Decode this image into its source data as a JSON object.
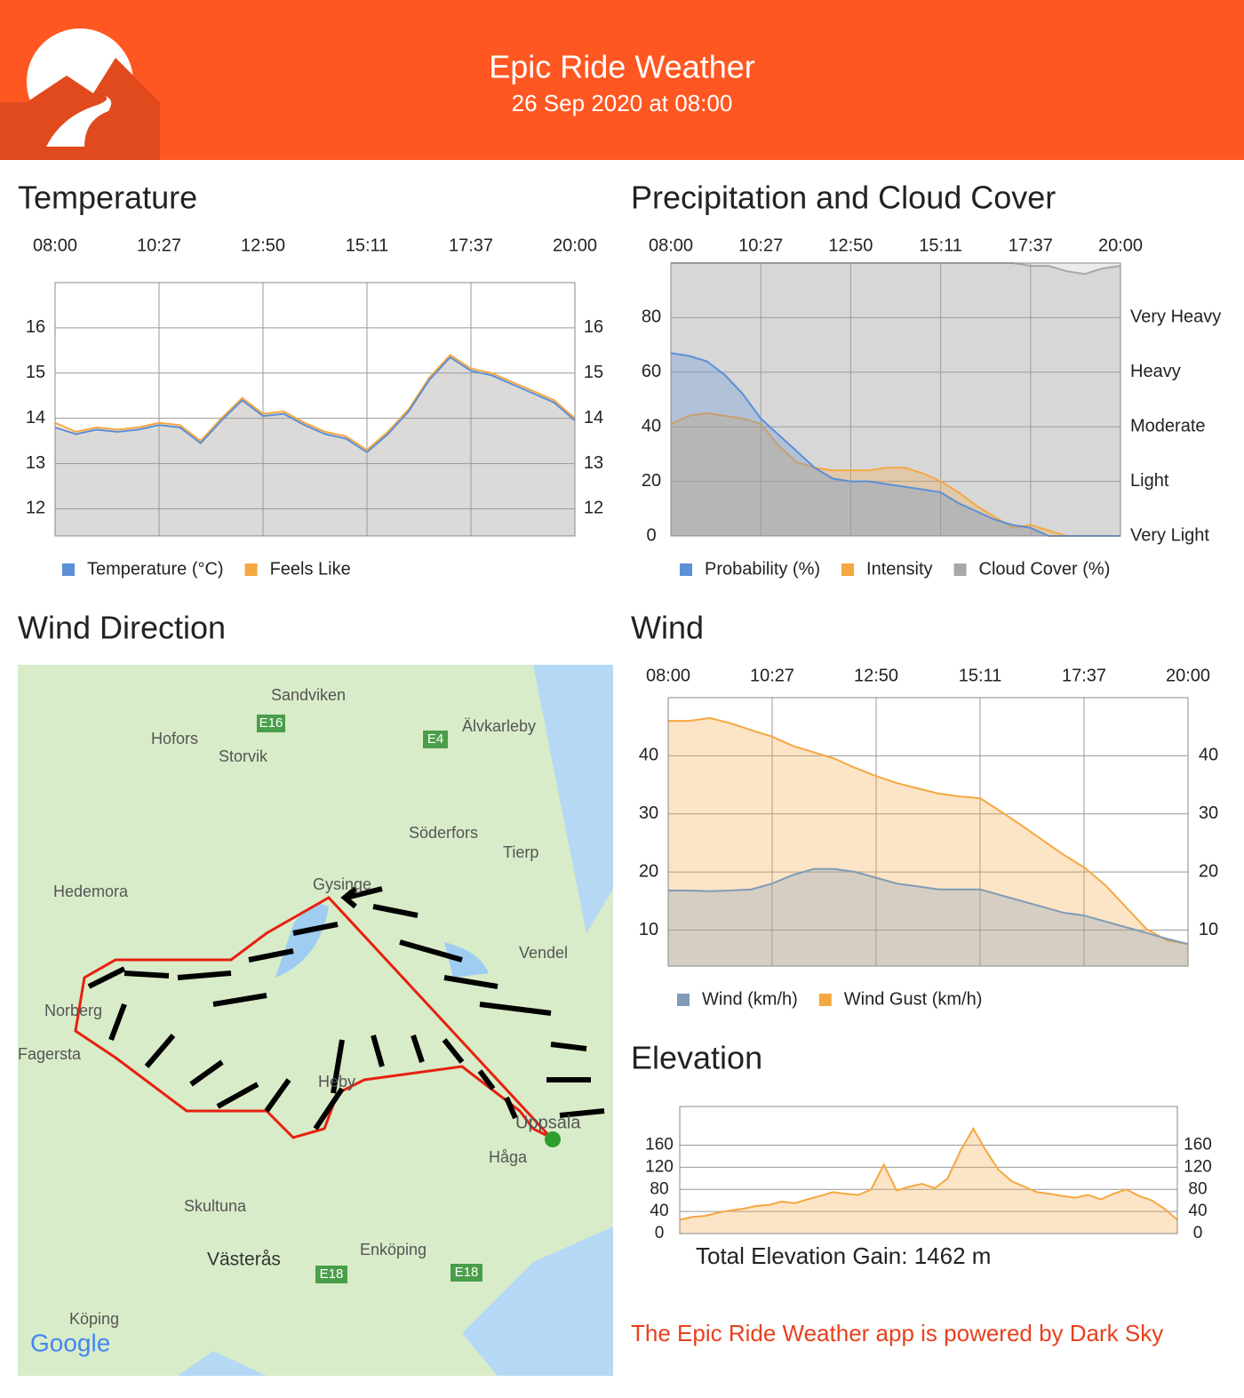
{
  "header": {
    "title": "Epic Ride Weather",
    "subtitle": "26 Sep 2020 at 08:00"
  },
  "chart_data": [
    {
      "type": "area",
      "title": "Temperature",
      "categories": [
        "08:00",
        null,
        null,
        null,
        null,
        "10:27",
        null,
        null,
        null,
        null,
        "12:50",
        null,
        null,
        null,
        null,
        "15:11",
        null,
        null,
        null,
        null,
        "17:37",
        null,
        null,
        null,
        null,
        "20:00"
      ],
      "series": [
        {
          "name": "Temperature (°C)",
          "color": "#5b8fd6",
          "values": [
            13.8,
            13.65,
            13.75,
            13.7,
            13.75,
            13.85,
            13.8,
            13.45,
            13.95,
            14.4,
            14.05,
            14.1,
            13.85,
            13.65,
            13.55,
            13.25,
            13.65,
            14.15,
            14.85,
            15.35,
            15.05,
            14.95,
            14.75,
            14.55,
            14.35,
            13.95
          ]
        },
        {
          "name": "Feels Like",
          "color": "#f5a742",
          "values": [
            13.9,
            13.7,
            13.8,
            13.75,
            13.8,
            13.9,
            13.85,
            13.5,
            14.0,
            14.45,
            14.1,
            14.15,
            13.9,
            13.7,
            13.6,
            13.3,
            13.7,
            14.2,
            14.9,
            15.4,
            15.1,
            15.0,
            14.8,
            14.6,
            14.4,
            14.0
          ]
        }
      ],
      "ylim": [
        11.4,
        17
      ],
      "yticks": [
        12,
        13,
        14,
        15,
        16
      ],
      "y2ticks": [
        12,
        13,
        14,
        15,
        16
      ],
      "grid": true
    },
    {
      "type": "area",
      "title": "Precipitation and Cloud Cover",
      "categories": [
        "08:00",
        null,
        null,
        null,
        null,
        "10:27",
        null,
        null,
        null,
        null,
        "12:50",
        null,
        null,
        null,
        null,
        "15:11",
        null,
        null,
        null,
        null,
        "17:37",
        null,
        null,
        null,
        null,
        "20:00"
      ],
      "series": [
        {
          "name": "Probability (%)",
          "color": "#5b8fd6",
          "values": [
            67,
            66,
            64,
            59,
            52,
            43,
            37,
            31,
            25,
            21,
            20,
            20,
            19,
            18,
            17,
            16,
            12,
            9,
            6,
            4,
            3,
            0,
            0,
            0,
            0,
            0
          ]
        },
        {
          "name": "Intensity",
          "color": "#f5a742",
          "values": [
            41,
            44,
            45,
            44,
            43,
            41,
            33,
            27,
            25,
            24,
            24,
            24,
            25,
            25,
            23,
            20,
            16,
            11,
            7,
            3,
            4,
            2,
            0,
            0,
            0,
            0
          ]
        },
        {
          "name": "Cloud Cover (%)",
          "color": "#a8a8a8",
          "values": [
            100,
            100,
            100,
            100,
            100,
            100,
            100,
            100,
            100,
            100,
            100,
            100,
            100,
            100,
            100,
            100,
            100,
            100,
            100,
            100,
            99,
            99,
            97,
            96,
            98,
            99
          ]
        }
      ],
      "ylim": [
        0,
        100
      ],
      "yticks": [
        0,
        20,
        40,
        60,
        80
      ],
      "y2lim": [
        0,
        100
      ],
      "y2ticks": [
        {
          "value": 0,
          "label": "Very Light"
        },
        {
          "value": 20,
          "label": "Light"
        },
        {
          "value": 40,
          "label": "Moderate"
        },
        {
          "value": 60,
          "label": "Heavy"
        },
        {
          "value": 80,
          "label": "Very Heavy"
        }
      ],
      "grid": true
    },
    {
      "type": "area",
      "title": "Wind",
      "categories": [
        "08:00",
        null,
        null,
        null,
        null,
        "10:27",
        null,
        null,
        null,
        null,
        "12:50",
        null,
        null,
        null,
        null,
        "15:11",
        null,
        null,
        null,
        null,
        "17:37",
        null,
        null,
        null,
        null,
        "20:00"
      ],
      "series": [
        {
          "name": "Wind (km/h)",
          "color": "#7f9bb8",
          "values": [
            16.8,
            16.8,
            16.7,
            16.8,
            17,
            18,
            19.5,
            20.5,
            20.5,
            20,
            19,
            18,
            17.5,
            17,
            17,
            17,
            16,
            15,
            14,
            13,
            12.5,
            11.5,
            10.5,
            9.5,
            8.5,
            7.6
          ]
        },
        {
          "name": "Wind Gust (km/h)",
          "color": "#f5a742",
          "values": [
            46,
            46,
            46.5,
            45.6,
            44.4,
            43.3,
            41.7,
            40.6,
            39.5,
            37.9,
            36.5,
            35.3,
            34.4,
            33.5,
            33,
            32.7,
            30.4,
            28,
            25.5,
            23,
            20.8,
            17.8,
            14,
            10.2,
            8.2,
            7.6
          ]
        }
      ],
      "ylim": [
        3.8,
        50
      ],
      "yticks": [
        10,
        20,
        30,
        40
      ],
      "y2ticks": [
        10,
        20,
        30,
        40
      ],
      "grid": true
    },
    {
      "type": "area",
      "title": "Elevation",
      "annotation": "Total Elevation Gain: 1462 m",
      "series": [
        {
          "color": "#f5a742",
          "values": [
            25,
            30,
            32,
            38,
            42,
            45,
            50,
            52,
            58,
            55,
            62,
            68,
            75,
            72,
            70,
            80,
            125,
            78,
            85,
            90,
            82,
            100,
            150,
            190,
            150,
            115,
            95,
            85,
            75,
            72,
            68,
            65,
            70,
            62,
            72,
            80,
            68,
            60,
            45,
            25
          ]
        }
      ],
      "ylim": [
        0,
        230
      ],
      "yticks": [
        0,
        40,
        80,
        120,
        160
      ],
      "y2ticks": [
        0,
        40,
        80,
        120,
        160
      ],
      "grid": true
    }
  ],
  "map": {
    "title": "Wind Direction",
    "places": [
      "Sandviken",
      "Hofors",
      "Storvik",
      "Älvkarleby",
      "Söderfors",
      "Tierp",
      "Hedemora",
      "Gysinge",
      "Vendel",
      "Norberg",
      "Fagersta",
      "Heby",
      "Uppsala",
      "Håga",
      "Skultuna",
      "Västerås",
      "Enköping",
      "Köping",
      "E16",
      "E4",
      "E18",
      "Google"
    ]
  },
  "footer": "The Epic Ride Weather app is powered by Dark Sky"
}
